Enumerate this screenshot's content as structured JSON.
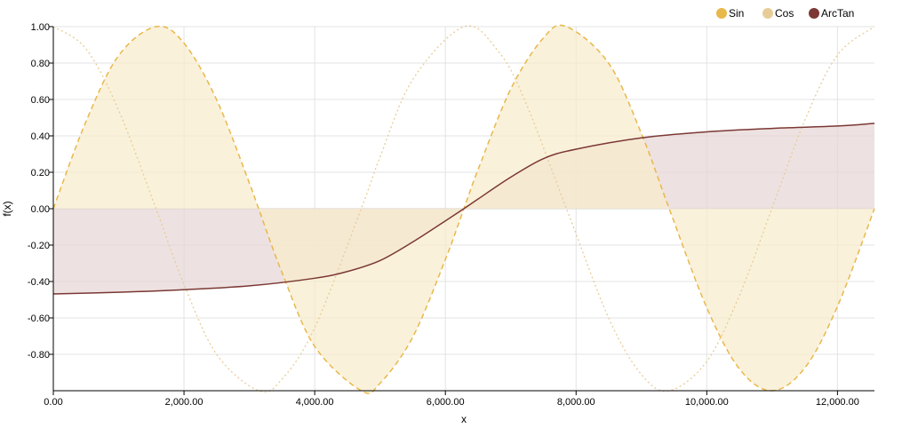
{
  "chart_data": {
    "type": "area",
    "title": "",
    "xlabel": "x",
    "ylabel": "f(x)",
    "xlim": [
      0,
      12566
    ],
    "ylim": [
      -1,
      1
    ],
    "grid": true,
    "legend_position": "top-right",
    "x_ticks": [
      0,
      2000,
      4000,
      6000,
      8000,
      10000,
      12000
    ],
    "x_tick_labels": [
      "0.00",
      "2,000.00",
      "4,000.00",
      "6,000.00",
      "8,000.00",
      "10,000.00",
      "12,000.00"
    ],
    "y_ticks": [
      1,
      0.8,
      0.6,
      0.4,
      0.2,
      0,
      -0.2,
      -0.4,
      -0.6,
      -0.8
    ],
    "y_tick_labels": [
      "1.00",
      "0.80",
      "0.60",
      "0.40",
      "0.20",
      "0.00",
      "-0.20",
      "-0.40",
      "-0.60",
      "-0.80"
    ],
    "series": [
      {
        "name": "Sin",
        "color": "#e8b84a",
        "area_color": "#f8ebcc",
        "line_style": "dashed",
        "filled": true,
        "x": [
          0,
          500,
          1000,
          1571,
          2000,
          2500,
          3000,
          3142,
          3500,
          4000,
          4712,
          5000,
          5500,
          6000,
          6283,
          6500,
          7000,
          7500,
          7854,
          8500,
          9000,
          9425,
          10000,
          10500,
          10996,
          11500,
          12000,
          12566
        ],
        "values": [
          0,
          0.479,
          0.841,
          1.0,
          0.909,
          0.598,
          0.141,
          0,
          -0.351,
          -0.757,
          -1.0,
          -0.959,
          -0.706,
          -0.279,
          0,
          0.215,
          0.657,
          0.938,
          1.0,
          0.798,
          0.412,
          0,
          -0.544,
          -0.88,
          -1.0,
          -0.875,
          -0.537,
          0
        ]
      },
      {
        "name": "Cos",
        "color": "#e8cc98",
        "line_style": "dotted",
        "filled": false,
        "x": [
          0,
          500,
          1000,
          1571,
          2000,
          2500,
          3142,
          3500,
          4000,
          4712,
          5000,
          5500,
          6283,
          6800,
          7200,
          7854,
          8500,
          9000,
          9425,
          10000,
          10500,
          10996,
          11500,
          12000,
          12566
        ],
        "values": [
          1.0,
          0.878,
          0.54,
          0,
          -0.416,
          -0.801,
          -1.0,
          -0.936,
          -0.654,
          0,
          0.284,
          0.709,
          1.0,
          0.869,
          0.608,
          0,
          -0.602,
          -0.911,
          -1.0,
          -0.839,
          -0.476,
          0,
          0.485,
          0.844,
          1.0
        ]
      },
      {
        "name": "ArcTan",
        "color": "#7b3834",
        "area_color": "#e6d5d5",
        "line_style": "solid",
        "filled": true,
        "x": [
          0,
          1000,
          2000,
          3000,
          4000,
          4500,
          5000,
          5500,
          6000,
          6283,
          6500,
          7000,
          7500,
          8000,
          9000,
          10000,
          11000,
          12000,
          12566
        ],
        "values": [
          -0.468,
          -0.459,
          -0.445,
          -0.424,
          -0.382,
          -0.345,
          -0.285,
          -0.183,
          -0.067,
          0,
          0.053,
          0.173,
          0.275,
          0.327,
          0.389,
          0.422,
          0.441,
          0.454,
          0.469
        ]
      }
    ]
  }
}
